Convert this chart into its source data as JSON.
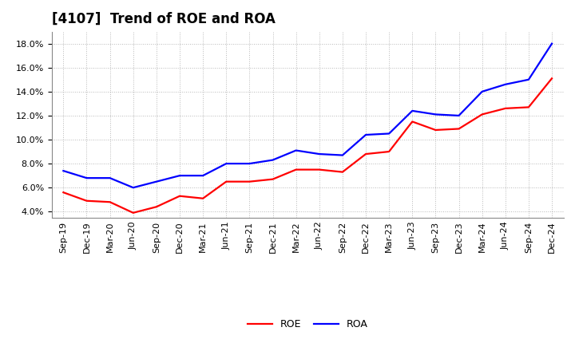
{
  "title": "[4107]  Trend of ROE and ROA",
  "x_labels": [
    "Sep-19",
    "Dec-19",
    "Mar-20",
    "Jun-20",
    "Sep-20",
    "Dec-20",
    "Mar-21",
    "Jun-21",
    "Sep-21",
    "Dec-21",
    "Mar-22",
    "Jun-22",
    "Sep-22",
    "Dec-22",
    "Mar-23",
    "Jun-23",
    "Sep-23",
    "Dec-23",
    "Mar-24",
    "Jun-24",
    "Sep-24",
    "Dec-24"
  ],
  "ROE": [
    5.6,
    4.9,
    4.8,
    3.9,
    4.4,
    5.3,
    5.1,
    6.5,
    6.5,
    6.7,
    7.5,
    7.5,
    7.3,
    8.8,
    9.0,
    11.5,
    10.8,
    10.9,
    12.1,
    12.6,
    12.7,
    15.1
  ],
  "ROA": [
    7.4,
    6.8,
    6.8,
    6.0,
    6.5,
    7.0,
    7.0,
    8.0,
    8.0,
    8.3,
    9.1,
    8.8,
    8.7,
    10.4,
    10.5,
    12.4,
    12.1,
    12.0,
    14.0,
    14.6,
    15.0,
    18.0
  ],
  "roe_color": "#ff0000",
  "roa_color": "#0000ff",
  "ylim": [
    3.5,
    19.0
  ],
  "yticks": [
    4.0,
    6.0,
    8.0,
    10.0,
    12.0,
    14.0,
    16.0,
    18.0
  ],
  "background_color": "#ffffff",
  "plot_bg_color": "#ffffff",
  "grid_color": "#888888",
  "title_fontsize": 12,
  "tick_fontsize": 8,
  "legend_fontsize": 9,
  "line_width": 1.6
}
